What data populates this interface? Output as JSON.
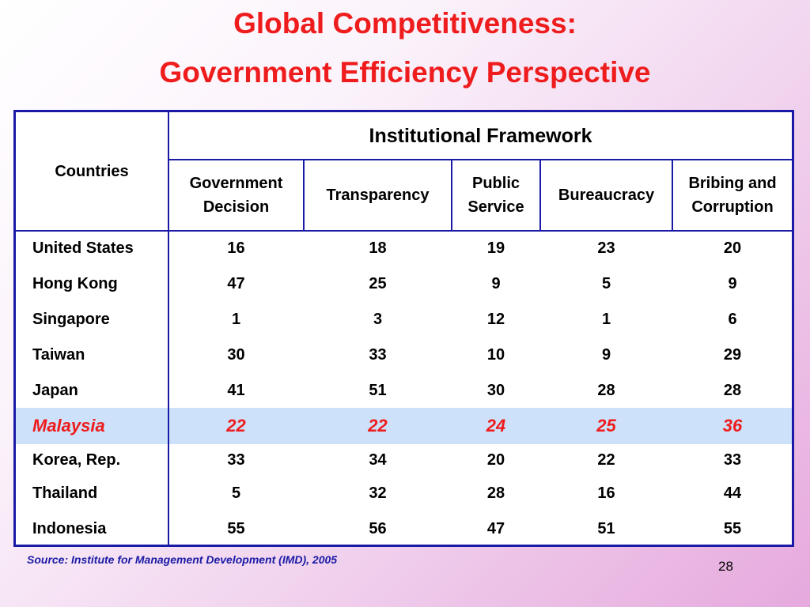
{
  "slide": {
    "title_line1": "Global Competitiveness:",
    "title_line2": "Government Efficiency Perspective",
    "source": "Source: Institute for Management Development (IMD), 2005",
    "page_number": "28"
  },
  "table": {
    "countries_header": "Countries",
    "group_header": "Institutional Framework",
    "columns": [
      "Government Decision",
      "Transparency",
      "Public Service",
      "Bureaucracy",
      "Bribing and Corruption"
    ],
    "rows": [
      {
        "country": "United States",
        "values": [
          "16",
          "18",
          "19",
          "23",
          "20"
        ],
        "highlight": false
      },
      {
        "country": "Hong Kong",
        "values": [
          "47",
          "25",
          "9",
          "5",
          "9"
        ],
        "highlight": false
      },
      {
        "country": "Singapore",
        "values": [
          "1",
          "3",
          "12",
          "1",
          "6"
        ],
        "highlight": false
      },
      {
        "country": "Taiwan",
        "values": [
          "30",
          "33",
          "10",
          "9",
          "29"
        ],
        "highlight": false
      },
      {
        "country": "Japan",
        "values": [
          "41",
          "51",
          "30",
          "28",
          "28"
        ],
        "highlight": false
      },
      {
        "country": "Malaysia",
        "values": [
          "22",
          "22",
          "24",
          "25",
          "36"
        ],
        "highlight": true
      },
      {
        "country": "Korea, Rep.",
        "values": [
          "33",
          "34",
          "20",
          "22",
          "33"
        ],
        "highlight": false
      },
      {
        "country": "Thailand",
        "values": [
          "5",
          "32",
          "28",
          "16",
          "44"
        ],
        "highlight": false
      },
      {
        "country": "Indonesia",
        "values": [
          "55",
          "56",
          "47",
          "51",
          "55"
        ],
        "highlight": false
      }
    ],
    "colors": {
      "border": "#1a1aa6",
      "title": "#ee1c1c",
      "highlight_row": "#cde1fa",
      "highlight_text": "#ee1c1c"
    }
  }
}
